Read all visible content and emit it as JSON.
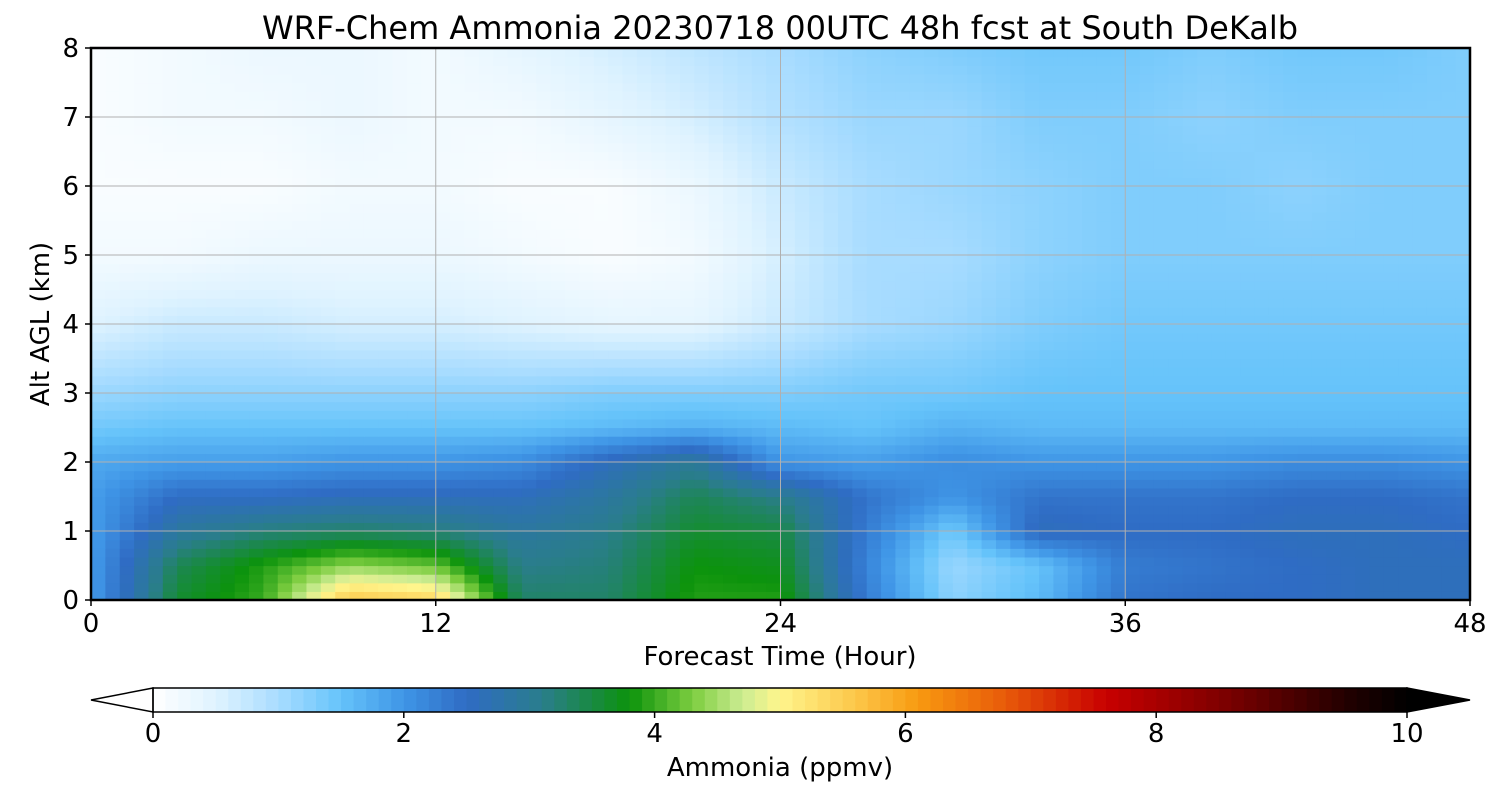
{
  "chart_data": {
    "type": "heatmap",
    "title": "WRF-Chem Ammonia  20230718 00UTC 48h fcst at South DeKalb",
    "xlabel": "Forecast Time (Hour)",
    "ylabel": "Alt AGL (km)",
    "xlim": [
      0,
      48
    ],
    "ylim": [
      0,
      8
    ],
    "xticks": [
      0,
      12,
      24,
      36,
      48
    ],
    "yticks": [
      0,
      1,
      2,
      3,
      4,
      5,
      6,
      7,
      8
    ],
    "grid": true,
    "x": [
      0,
      3,
      6,
      9,
      12,
      15,
      18,
      21,
      24,
      27,
      30,
      33,
      36,
      39,
      42,
      45,
      48
    ],
    "y": [
      0,
      0.5,
      1,
      1.5,
      2,
      2.5,
      3,
      4,
      5,
      6,
      7,
      8
    ],
    "z": [
      [
        1.9,
        3.6,
        4.0,
        5.6,
        5.4,
        3.3,
        3.3,
        3.9,
        3.9,
        2.3,
        1.2,
        1.6,
        2.4,
        2.5,
        2.5,
        2.6,
        2.6
      ],
      [
        1.9,
        3.4,
        3.9,
        4.4,
        4.2,
        3.1,
        3.2,
        3.8,
        3.7,
        2.2,
        1.1,
        1.5,
        2.3,
        2.4,
        2.5,
        2.6,
        2.6
      ],
      [
        1.9,
        2.9,
        3.2,
        3.3,
        3.2,
        2.9,
        3.1,
        3.6,
        3.5,
        2.3,
        1.4,
        2.6,
        2.5,
        2.5,
        2.6,
        2.6,
        2.5
      ],
      [
        1.9,
        2.5,
        2.5,
        2.6,
        2.6,
        2.6,
        2.9,
        3.4,
        3.1,
        2.4,
        2.0,
        2.4,
        2.4,
        2.4,
        2.5,
        2.5,
        2.4
      ],
      [
        1.8,
        1.9,
        1.9,
        2.0,
        2.0,
        2.1,
        2.6,
        3.0,
        2.0,
        1.9,
        2.1,
        2.0,
        2.0,
        2.0,
        2.1,
        2.1,
        2.0
      ],
      [
        1.4,
        1.5,
        1.5,
        1.5,
        1.5,
        1.5,
        1.6,
        1.7,
        1.6,
        1.5,
        1.7,
        1.6,
        1.6,
        1.6,
        1.6,
        1.6,
        1.6
      ],
      [
        1.1,
        1.2,
        1.2,
        1.2,
        1.2,
        1.2,
        1.3,
        1.3,
        1.3,
        1.4,
        1.4,
        1.5,
        1.5,
        1.5,
        1.5,
        1.5,
        1.5
      ],
      [
        0.5,
        0.7,
        0.7,
        0.6,
        0.6,
        0.5,
        0.4,
        0.4,
        0.7,
        1.0,
        1.1,
        1.3,
        1.4,
        1.4,
        1.4,
        1.4,
        1.4
      ],
      [
        0.2,
        0.2,
        0.3,
        0.3,
        0.3,
        0.2,
        0.1,
        0.2,
        0.6,
        1.0,
        1.0,
        1.2,
        1.3,
        1.3,
        1.3,
        1.3,
        1.3
      ],
      [
        0.1,
        0.1,
        0.1,
        0.2,
        0.2,
        0.1,
        0.1,
        0.3,
        0.7,
        1.0,
        1.1,
        1.2,
        1.3,
        1.3,
        1.2,
        1.3,
        1.3
      ],
      [
        0.1,
        0.2,
        0.2,
        0.3,
        0.2,
        0.2,
        0.4,
        0.6,
        0.9,
        1.1,
        1.1,
        1.3,
        1.3,
        1.2,
        1.3,
        1.3,
        1.3
      ],
      [
        0.1,
        0.2,
        0.3,
        0.3,
        0.2,
        0.4,
        0.6,
        0.8,
        1.0,
        1.2,
        1.3,
        1.4,
        1.4,
        1.3,
        1.4,
        1.4,
        1.3
      ]
    ],
    "colorbar": {
      "label": "Ammonia  (ppmv)",
      "range": [
        0,
        10
      ],
      "ticks": [
        0,
        2,
        4,
        6,
        8,
        10
      ],
      "extend": "both",
      "under_color": "#ffffff",
      "over_color": "#000000",
      "colors": [
        "#ffffff",
        "#dff3ff",
        "#a8dcff",
        "#65c3fa",
        "#3f95e6",
        "#2f6cc4",
        "#2a7d8c",
        "#0c930c",
        "#7ccd3f",
        "#ccec92",
        "#fff58c",
        "#fcc74a",
        "#f89a10",
        "#e85a0a",
        "#c80000",
        "#780000",
        "#240000",
        "#000000"
      ],
      "color_stops": [
        0,
        0.5,
        1.0,
        1.5,
        2.0,
        2.5,
        3.1,
        3.8,
        4.3,
        4.7,
        5.0,
        5.6,
        6.1,
        6.8,
        7.6,
        8.6,
        9.5,
        10
      ]
    }
  }
}
